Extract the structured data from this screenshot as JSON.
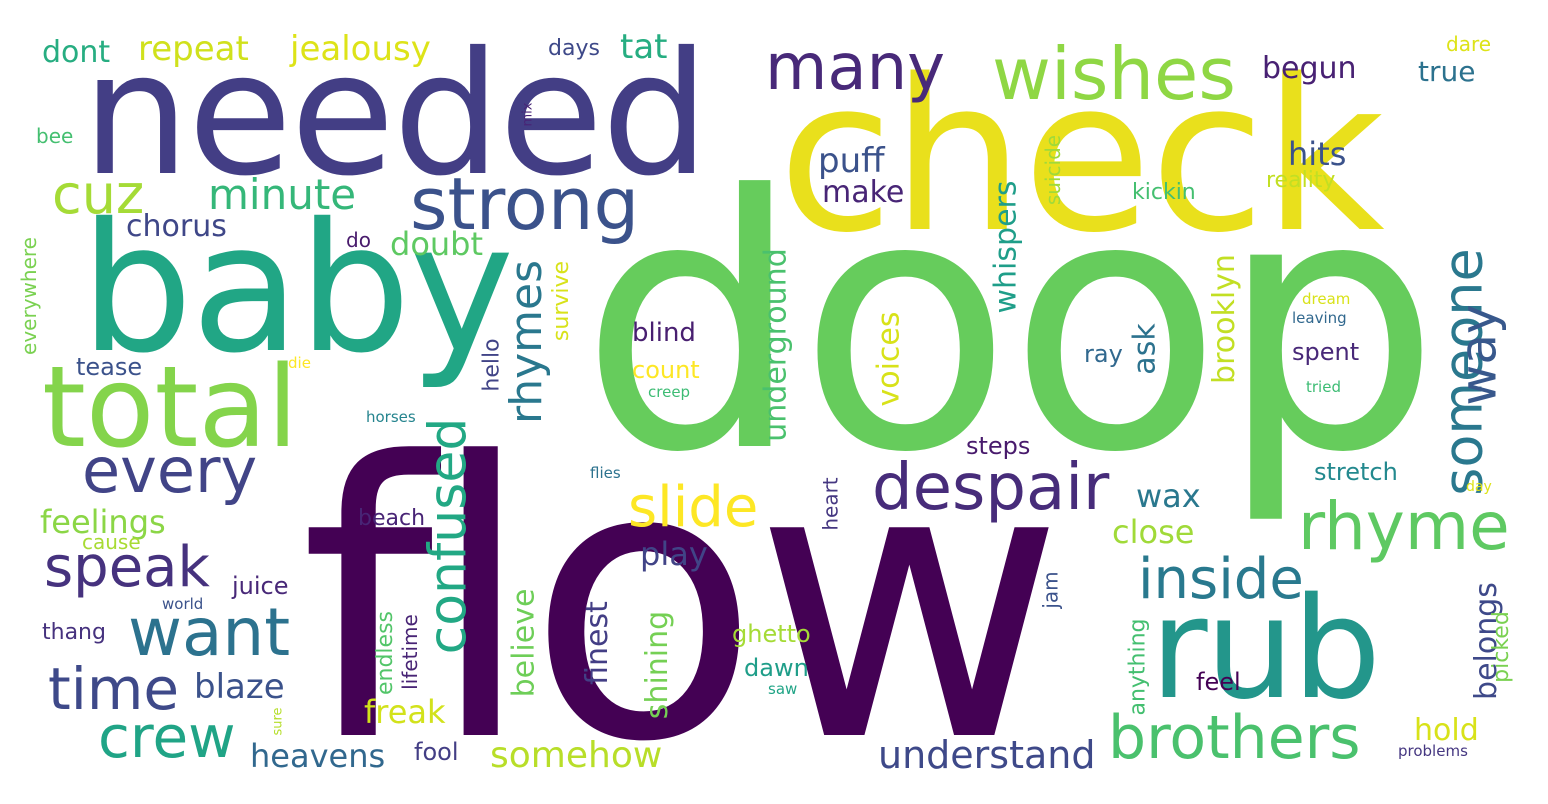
{
  "words": [
    {
      "text": "flow",
      "color": "#440154",
      "rotated": false
    },
    {
      "text": "doop",
      "color": "#66cc5c",
      "rotated": false
    },
    {
      "text": "check",
      "color": "#e9e01c",
      "rotated": false
    },
    {
      "text": "needed",
      "color": "#433e85",
      "rotated": false
    },
    {
      "text": "baby",
      "color": "#21a685",
      "rotated": false
    },
    {
      "text": "rub",
      "color": "#23968b",
      "rotated": false
    },
    {
      "text": "total",
      "color": "#84d44b",
      "rotated": false
    },
    {
      "text": "strong",
      "color": "#3b528b",
      "rotated": false
    },
    {
      "text": "wishes",
      "color": "#8fd744",
      "rotated": false
    },
    {
      "text": "many",
      "color": "#482979",
      "rotated": false
    },
    {
      "text": "despair",
      "color": "#472c7a",
      "rotated": false
    },
    {
      "text": "rhyme",
      "color": "#5ec962",
      "rotated": false
    },
    {
      "text": "brothers",
      "color": "#4ac16d",
      "rotated": false
    },
    {
      "text": "every",
      "color": "#414487",
      "rotated": false
    },
    {
      "text": "want",
      "color": "#2c728e",
      "rotated": false
    },
    {
      "text": "speak",
      "color": "#46327e",
      "rotated": false
    },
    {
      "text": "time",
      "color": "#3e4989",
      "rotated": false
    },
    {
      "text": "crew",
      "color": "#20a486",
      "rotated": false
    },
    {
      "text": "cuz",
      "color": "#a5db36",
      "rotated": false
    },
    {
      "text": "inside",
      "color": "#29798e",
      "rotated": false
    },
    {
      "text": "slide",
      "color": "#fde725",
      "rotated": false
    },
    {
      "text": "confused",
      "color": "#22a884",
      "rotated": true
    },
    {
      "text": "rhymes",
      "color": "#2a788e",
      "rotated": true
    },
    {
      "text": "someone",
      "color": "#2a788e",
      "rotated": true
    },
    {
      "text": "way",
      "color": "#38588c",
      "rotated": true
    },
    {
      "text": "minute",
      "color": "#35b779",
      "rotated": false
    },
    {
      "text": "understand",
      "color": "#3e4989",
      "rotated": false
    },
    {
      "text": "somehow",
      "color": "#b8de29",
      "rotated": false
    },
    {
      "text": "heavens",
      "color": "#31688e",
      "rotated": false
    },
    {
      "text": "blaze",
      "color": "#3b528b",
      "rotated": false
    },
    {
      "text": "repeat",
      "color": "#d0e11c",
      "rotated": false
    },
    {
      "text": "jealousy",
      "color": "#dde318",
      "rotated": false
    },
    {
      "text": "dont",
      "color": "#27ad81",
      "rotated": false
    },
    {
      "text": "tat",
      "color": "#26ad81",
      "rotated": false
    },
    {
      "text": "days",
      "color": "#3e4989",
      "rotated": false
    },
    {
      "text": "begun",
      "color": "#482173",
      "rotated": false
    },
    {
      "text": "true",
      "color": "#2c728e",
      "rotated": false
    },
    {
      "text": "hits",
      "color": "#3b528b",
      "rotated": false
    },
    {
      "text": "reality",
      "color": "#c2df23",
      "rotated": false
    },
    {
      "text": "kickin",
      "color": "#44bf70",
      "rotated": false
    },
    {
      "text": "puff",
      "color": "#3b528b",
      "rotated": false
    },
    {
      "text": "make",
      "color": "#482576",
      "rotated": false
    },
    {
      "text": "chorus",
      "color": "#3f4788",
      "rotated": false
    },
    {
      "text": "do",
      "color": "#481a6c",
      "rotated": false
    },
    {
      "text": "doubt",
      "color": "#5ec962",
      "rotated": false
    },
    {
      "text": "feelings",
      "color": "#8bd646",
      "rotated": false
    },
    {
      "text": "cause",
      "color": "#a8db34",
      "rotated": false
    },
    {
      "text": "juice",
      "color": "#482878",
      "rotated": false
    },
    {
      "text": "world",
      "color": "#3b528b",
      "rotated": false
    },
    {
      "text": "thang",
      "color": "#46327e",
      "rotated": false
    },
    {
      "text": "tease",
      "color": "#3b528b",
      "rotated": false
    },
    {
      "text": "die",
      "color": "#fde725",
      "rotated": false
    },
    {
      "text": "horses",
      "color": "#25848e",
      "rotated": false
    },
    {
      "text": "bee",
      "color": "#44bf70",
      "rotated": false
    },
    {
      "text": "everywhere",
      "color": "#7ad151",
      "rotated": true
    },
    {
      "text": "mix",
      "color": "#482576",
      "rotated": true
    },
    {
      "text": "dare",
      "color": "#dde318",
      "rotated": false
    },
    {
      "text": "dream",
      "color": "#d8e219",
      "rotated": false
    },
    {
      "text": "leaving",
      "color": "#31688e",
      "rotated": false
    },
    {
      "text": "tried",
      "color": "#3dbc74",
      "rotated": false
    },
    {
      "text": "day",
      "color": "#dde318",
      "rotated": false
    },
    {
      "text": "blind",
      "color": "#481f70",
      "rotated": false
    },
    {
      "text": "count",
      "color": "#fde725",
      "rotated": false
    },
    {
      "text": "creep",
      "color": "#3dbc74",
      "rotated": false
    },
    {
      "text": "ray",
      "color": "#31688e",
      "rotated": false
    },
    {
      "text": "spent",
      "color": "#482878",
      "rotated": false
    },
    {
      "text": "steps",
      "color": "#481a6c",
      "rotated": false
    },
    {
      "text": "stretch",
      "color": "#23898e",
      "rotated": false
    },
    {
      "text": "close",
      "color": "#a0da39",
      "rotated": false
    },
    {
      "text": "wax",
      "color": "#2a788e",
      "rotated": false
    },
    {
      "text": "play",
      "color": "#414487",
      "rotated": false
    },
    {
      "text": "beach",
      "color": "#482475",
      "rotated": false
    },
    {
      "text": "flies",
      "color": "#2c728e",
      "rotated": false
    },
    {
      "text": "freak",
      "color": "#d2e21b",
      "rotated": false
    },
    {
      "text": "fool",
      "color": "#433e85",
      "rotated": false
    },
    {
      "text": "ghetto",
      "color": "#a5db36",
      "rotated": false
    },
    {
      "text": "dawn",
      "color": "#1f9e89",
      "rotated": false
    },
    {
      "text": "saw",
      "color": "#20a486",
      "rotated": false
    },
    {
      "text": "feel",
      "color": "#440154",
      "rotated": false
    },
    {
      "text": "hold",
      "color": "#d8e219",
      "rotated": false
    },
    {
      "text": "problems",
      "color": "#453781",
      "rotated": false
    },
    {
      "text": "sure",
      "color": "#b5de2b",
      "rotated": true
    },
    {
      "text": "hello",
      "color": "#414487",
      "rotated": true
    },
    {
      "text": "survive",
      "color": "#d8e219",
      "rotated": true
    },
    {
      "text": "whispers",
      "color": "#1f9e89",
      "rotated": true
    },
    {
      "text": "underground",
      "color": "#4ac16d",
      "rotated": true
    },
    {
      "text": "voices",
      "color": "#d8e219",
      "rotated": true
    },
    {
      "text": "ask",
      "color": "#2c728e",
      "rotated": true
    },
    {
      "text": "brooklyn",
      "color": "#c2df23",
      "rotated": true
    },
    {
      "text": "suicide",
      "color": "#a0da39",
      "rotated": true
    },
    {
      "text": "believe",
      "color": "#6ece58",
      "rotated": true
    },
    {
      "text": "finest",
      "color": "#433e85",
      "rotated": true
    },
    {
      "text": "shining",
      "color": "#75d054",
      "rotated": true
    },
    {
      "text": "endless",
      "color": "#52c569",
      "rotated": true
    },
    {
      "text": "lifetime",
      "color": "#482475",
      "rotated": true
    },
    {
      "text": "heart",
      "color": "#453781",
      "rotated": true
    },
    {
      "text": "jam",
      "color": "#3b528b",
      "rotated": true
    },
    {
      "text": "anything",
      "color": "#44bf70",
      "rotated": true
    },
    {
      "text": "belongs",
      "color": "#3e4989",
      "rotated": true
    },
    {
      "text": "picked",
      "color": "#7ad151",
      "rotated": true
    }
  ]
}
